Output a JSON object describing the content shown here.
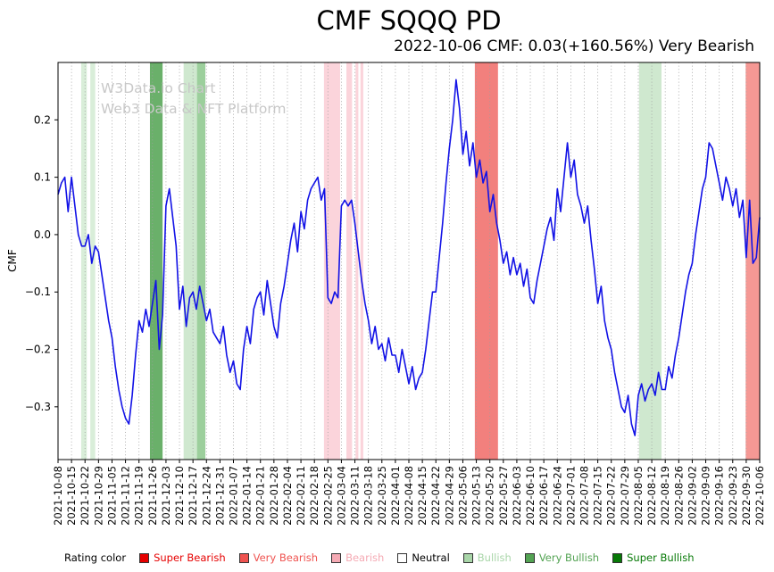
{
  "header": {
    "title": "CMF SQQQ PD",
    "subtitle": "2022-10-06 CMF: 0.03(+160.56%) Very Bearish"
  },
  "watermark": {
    "line1": "W3Data.io Chart",
    "line2": "Web3 Data & NFT Platform"
  },
  "axis": {
    "y_label": "CMF"
  },
  "legend": {
    "title": "Rating color",
    "items": [
      {
        "label": "Super Bearish",
        "color": "#e60000"
      },
      {
        "label": "Very Bearish",
        "color": "#ef5350"
      },
      {
        "label": "Bearish",
        "color": "#f5aab4"
      },
      {
        "label": "Neutral",
        "color": "#ffffff",
        "text_color": "#000000"
      },
      {
        "label": "Bullish",
        "color": "#a9d6a9"
      },
      {
        "label": "Very Bullish",
        "color": "#53a353"
      },
      {
        "label": "Super Bullish",
        "color": "#077907"
      }
    ]
  },
  "chart_data": {
    "type": "line",
    "title": "CMF SQQQ PD",
    "subtitle": "2022-10-06 CMF: 0.03(+160.56%) Very Bearish",
    "xlabel": "",
    "ylabel": "CMF",
    "grid": "vertical-dotted",
    "legend_position": "bottom",
    "ylim": [
      -0.392,
      0.3
    ],
    "y_ticks": [
      0.2,
      0.1,
      0.0,
      -0.1,
      -0.2,
      -0.3
    ],
    "x_tick_labels": [
      "2021-10-08",
      "2021-10-15",
      "2021-10-22",
      "2021-10-29",
      "2021-11-05",
      "2021-11-12",
      "2021-11-19",
      "2021-11-26",
      "2021-12-03",
      "2021-12-10",
      "2021-12-17",
      "2021-12-24",
      "2021-12-31",
      "2022-01-07",
      "2022-01-14",
      "2022-01-21",
      "2022-01-28",
      "2022-02-04",
      "2022-02-11",
      "2022-02-18",
      "2022-02-25",
      "2022-03-04",
      "2022-03-11",
      "2022-03-18",
      "2022-03-25",
      "2022-04-01",
      "2022-04-08",
      "2022-04-15",
      "2022-04-22",
      "2022-04-29",
      "2022-05-06",
      "2022-05-13",
      "2022-05-20",
      "2022-05-27",
      "2022-06-03",
      "2022-06-10",
      "2022-06-17",
      "2022-06-24",
      "2022-07-01",
      "2022-07-08",
      "2022-07-15",
      "2022-07-22",
      "2022-07-29",
      "2022-08-05",
      "2022-08-12",
      "2022-08-19",
      "2022-08-26",
      "2022-09-02",
      "2022-09-09",
      "2022-09-16",
      "2022-09-23",
      "2022-09-30",
      "2022-10-06"
    ],
    "series": [
      {
        "name": "CMF",
        "color": "#1212e6",
        "values": [
          0.07,
          0.09,
          0.1,
          0.04,
          0.1,
          0.05,
          0.0,
          -0.02,
          -0.02,
          0.0,
          -0.05,
          -0.02,
          -0.03,
          -0.07,
          -0.11,
          -0.15,
          -0.18,
          -0.23,
          -0.27,
          -0.3,
          -0.32,
          -0.33,
          -0.28,
          -0.21,
          -0.15,
          -0.17,
          -0.13,
          -0.16,
          -0.12,
          -0.08,
          -0.2,
          -0.14,
          0.05,
          0.08,
          0.03,
          -0.02,
          -0.13,
          -0.09,
          -0.16,
          -0.11,
          -0.1,
          -0.13,
          -0.09,
          -0.12,
          -0.15,
          -0.13,
          -0.17,
          -0.18,
          -0.19,
          -0.16,
          -0.21,
          -0.24,
          -0.22,
          -0.26,
          -0.27,
          -0.2,
          -0.16,
          -0.19,
          -0.13,
          -0.11,
          -0.1,
          -0.14,
          -0.08,
          -0.12,
          -0.16,
          -0.18,
          -0.12,
          -0.09,
          -0.05,
          -0.01,
          0.02,
          -0.03,
          0.04,
          0.01,
          0.06,
          0.08,
          0.09,
          0.1,
          0.06,
          0.08,
          -0.11,
          -0.12,
          -0.1,
          -0.11,
          0.05,
          0.06,
          0.05,
          0.06,
          0.02,
          -0.03,
          -0.08,
          -0.12,
          -0.15,
          -0.19,
          -0.16,
          -0.2,
          -0.19,
          -0.22,
          -0.18,
          -0.21,
          -0.21,
          -0.24,
          -0.2,
          -0.23,
          -0.26,
          -0.23,
          -0.27,
          -0.25,
          -0.24,
          -0.2,
          -0.15,
          -0.1,
          -0.1,
          -0.04,
          0.02,
          0.09,
          0.15,
          0.2,
          0.27,
          0.22,
          0.14,
          0.18,
          0.12,
          0.16,
          0.1,
          0.13,
          0.09,
          0.11,
          0.04,
          0.07,
          0.02,
          -0.01,
          -0.05,
          -0.03,
          -0.07,
          -0.04,
          -0.07,
          -0.05,
          -0.09,
          -0.06,
          -0.11,
          -0.12,
          -0.08,
          -0.05,
          -0.02,
          0.01,
          0.03,
          -0.01,
          0.08,
          0.04,
          0.1,
          0.16,
          0.1,
          0.13,
          0.07,
          0.05,
          0.02,
          0.05,
          -0.01,
          -0.06,
          -0.12,
          -0.09,
          -0.15,
          -0.18,
          -0.2,
          -0.24,
          -0.27,
          -0.3,
          -0.31,
          -0.28,
          -0.33,
          -0.35,
          -0.28,
          -0.26,
          -0.29,
          -0.27,
          -0.26,
          -0.28,
          -0.24,
          -0.27,
          -0.27,
          -0.23,
          -0.25,
          -0.21,
          -0.18,
          -0.14,
          -0.1,
          -0.07,
          -0.05,
          0.0,
          0.04,
          0.08,
          0.1,
          0.16,
          0.15,
          0.12,
          0.09,
          0.06,
          0.1,
          0.08,
          0.05,
          0.08,
          0.03,
          0.06,
          -0.04,
          0.06,
          -0.05,
          -0.04,
          0.03
        ]
      }
    ],
    "bands": [
      {
        "start": 0.033,
        "end": 0.041,
        "rating": "Bullish",
        "color": "#d9eed9"
      },
      {
        "start": 0.046,
        "end": 0.053,
        "rating": "Bullish",
        "color": "#d9eed9"
      },
      {
        "start": 0.131,
        "end": 0.149,
        "rating": "Very Bullish",
        "color": "#6ab06a"
      },
      {
        "start": 0.179,
        "end": 0.198,
        "rating": "Bullish",
        "color": "#cfe8cf"
      },
      {
        "start": 0.198,
        "end": 0.21,
        "rating": "Very Bullish",
        "color": "#9ccf9c"
      },
      {
        "start": 0.379,
        "end": 0.402,
        "rating": "Bearish",
        "color": "#fbd4db"
      },
      {
        "start": 0.411,
        "end": 0.419,
        "rating": "Bearish",
        "color": "#fbd4db"
      },
      {
        "start": 0.424,
        "end": 0.428,
        "rating": "Bearish",
        "color": "#fbd4db"
      },
      {
        "start": 0.431,
        "end": 0.435,
        "rating": "Bearish",
        "color": "#fbd4db"
      },
      {
        "start": 0.594,
        "end": 0.627,
        "rating": "Very Bearish",
        "color": "#f2807d"
      },
      {
        "start": 0.828,
        "end": 0.86,
        "rating": "Bullish",
        "color": "#cfe8cf"
      },
      {
        "start": 0.98,
        "end": 1.0,
        "rating": "Very Bearish",
        "color": "#f59894"
      }
    ]
  }
}
